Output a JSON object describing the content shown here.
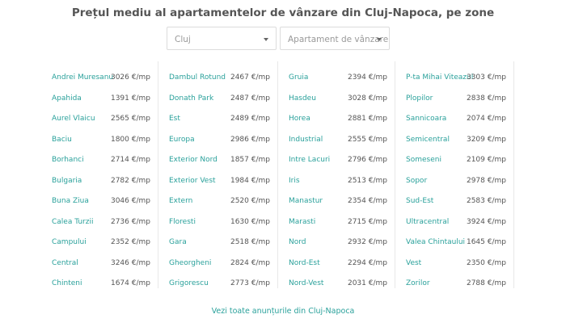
{
  "title": "Prețul mediu al apartamentelor de vânzare din Cluj-Napoca, pe zone",
  "filters": {
    "city": "Cluj",
    "type": "Apartament de vânzare"
  },
  "columns": [
    [
      {
        "zone": "Andrei Muresanu",
        "price": "3026 €/mp"
      },
      {
        "zone": "Apahida",
        "price": "1391 €/mp"
      },
      {
        "zone": "Aurel Vlaicu",
        "price": "2565 €/mp"
      },
      {
        "zone": "Baciu",
        "price": "1800 €/mp"
      },
      {
        "zone": "Borhanci",
        "price": "2714 €/mp"
      },
      {
        "zone": "Bulgaria",
        "price": "2782 €/mp"
      },
      {
        "zone": "Buna Ziua",
        "price": "3046 €/mp"
      },
      {
        "zone": "Calea Turzii",
        "price": "2736 €/mp"
      },
      {
        "zone": "Campului",
        "price": "2352 €/mp"
      },
      {
        "zone": "Central",
        "price": "3246 €/mp"
      },
      {
        "zone": "Chinteni",
        "price": "1674 €/mp"
      }
    ],
    [
      {
        "zone": "Dambul Rotund",
        "price": "2467 €/mp"
      },
      {
        "zone": "Donath Park",
        "price": "2487 €/mp"
      },
      {
        "zone": "Est",
        "price": "2489 €/mp"
      },
      {
        "zone": "Europa",
        "price": "2986 €/mp"
      },
      {
        "zone": "Exterior Nord",
        "price": "1857 €/mp"
      },
      {
        "zone": "Exterior Vest",
        "price": "1984 €/mp"
      },
      {
        "zone": "Extern",
        "price": "2520 €/mp"
      },
      {
        "zone": "Floresti",
        "price": "1630 €/mp"
      },
      {
        "zone": "Gara",
        "price": "2518 €/mp"
      },
      {
        "zone": "Gheorgheni",
        "price": "2824 €/mp"
      },
      {
        "zone": "Grigorescu",
        "price": "2773 €/mp"
      }
    ],
    [
      {
        "zone": "Gruia",
        "price": "2394 €/mp"
      },
      {
        "zone": "Hasdeu",
        "price": "3028 €/mp"
      },
      {
        "zone": "Horea",
        "price": "2881 €/mp"
      },
      {
        "zone": "Industrial",
        "price": "2555 €/mp"
      },
      {
        "zone": "Intre Lacuri",
        "price": "2796 €/mp"
      },
      {
        "zone": "Iris",
        "price": "2513 €/mp"
      },
      {
        "zone": "Manastur",
        "price": "2354 €/mp"
      },
      {
        "zone": "Marasti",
        "price": "2715 €/mp"
      },
      {
        "zone": "Nord",
        "price": "2932 €/mp"
      },
      {
        "zone": "Nord-Est",
        "price": "2294 €/mp"
      },
      {
        "zone": "Nord-Vest",
        "price": "2031 €/mp"
      }
    ],
    [
      {
        "zone": "P-ta Mihai Viteazul",
        "price": "3303 €/mp"
      },
      {
        "zone": "Plopilor",
        "price": "2838 €/mp"
      },
      {
        "zone": "Sannicoara",
        "price": "2074 €/mp"
      },
      {
        "zone": "Semicentral",
        "price": "3209 €/mp"
      },
      {
        "zone": "Someseni",
        "price": "2109 €/mp"
      },
      {
        "zone": "Sopor",
        "price": "2978 €/mp"
      },
      {
        "zone": "Sud-Est",
        "price": "2583 €/mp"
      },
      {
        "zone": "Ultracentral",
        "price": "3924 €/mp"
      },
      {
        "zone": "Valea Chintaului",
        "price": "1645 €/mp"
      },
      {
        "zone": "Vest",
        "price": "2350 €/mp"
      },
      {
        "zone": "Zorilor",
        "price": "2788 €/mp"
      }
    ]
  ],
  "footer_link": "Vezi toate anunțurile din Cluj-Napoca",
  "colors": {
    "accent": "#2aa19b",
    "title": "#555555",
    "divider": "#e8e8e8"
  },
  "icons": {
    "dropdown": "chevron-down-icon"
  }
}
